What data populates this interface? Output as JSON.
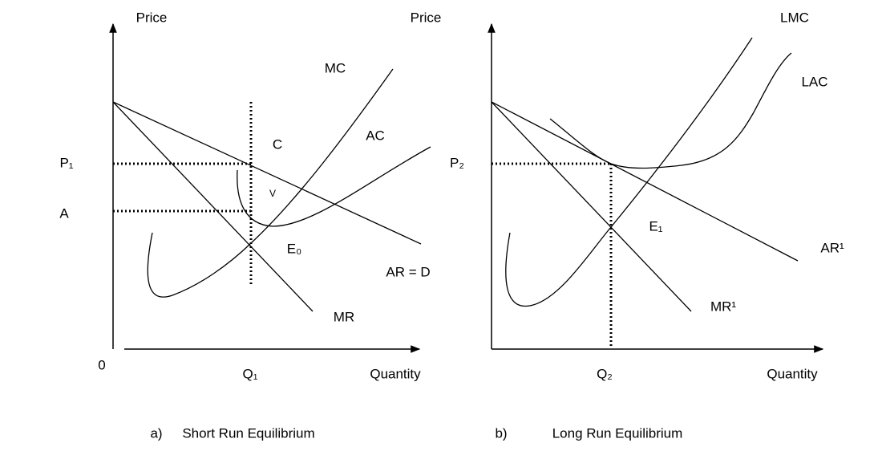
{
  "panels": [
    {
      "y_axis_label": "Price",
      "x_axis_label": "Quantity",
      "origin_label": "0",
      "labels": {
        "mc": "MC",
        "ac": "AC",
        "c": "C",
        "v": "V",
        "price_level": "P₁",
        "avg_cost_level": "A",
        "equilibrium": "E₀",
        "demand": "AR = D",
        "mr": "MR",
        "quantity": "Q₁"
      },
      "caption": {
        "marker": "a)",
        "text": "Short Run Equilibrium"
      }
    },
    {
      "y_axis_label": "Price",
      "x_axis_label": "Quantity",
      "labels": {
        "lmc": "LMC",
        "lac": "LAC",
        "price_level": "P₂",
        "equilibrium": "E₁",
        "ar": "AR¹",
        "mr": "MR¹",
        "quantity": "Q₂"
      },
      "caption": {
        "marker": "b)",
        "text": "Long Run Equilibrium"
      }
    }
  ]
}
